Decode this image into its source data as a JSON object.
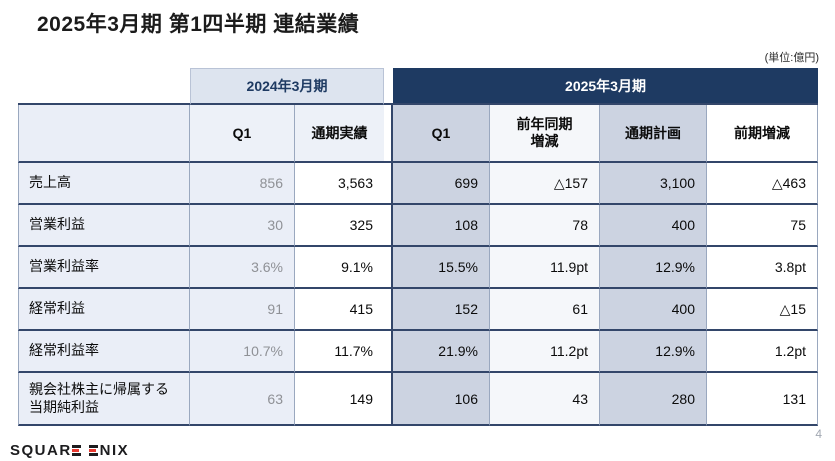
{
  "page": {
    "title": "2025年3月期 第1四半期 連結業績",
    "unit_label": "(単位:億円)",
    "page_number": "4"
  },
  "footer": {
    "logo_full": "SQUARE ENIX",
    "logo_text_1": "SQUAR",
    "logo_text_2": "NIX"
  },
  "colors": {
    "header_navy": "#1e3a62",
    "fy2024_header_bg": "#dde4ef",
    "label_column_bg": "#eaeef7",
    "shaded_column_bg": "#ccd3e1",
    "logo_red": "#e8382f",
    "border_dark": "#33466a",
    "border_light": "#9aa8bf"
  },
  "table": {
    "group_headers": {
      "fy2024": "2024年3月期",
      "fy2025": "2025年3月期"
    },
    "column_headers": {
      "q1_fy24": "Q1",
      "full_year_actual": "通期実績",
      "q1_fy25": "Q1",
      "yoy_change": "前年同期\n増減",
      "full_year_plan": "通期計画",
      "period_change": "前期増減"
    },
    "rows": [
      {
        "label": "売上高",
        "q1_fy24": "856",
        "full_year_actual": "3,563",
        "q1_fy25": "699",
        "yoy_change": "△157",
        "full_year_plan": "3,100",
        "period_change": "△463"
      },
      {
        "label": "営業利益",
        "q1_fy24": "30",
        "full_year_actual": "325",
        "q1_fy25": "108",
        "yoy_change": "78",
        "full_year_plan": "400",
        "period_change": "75"
      },
      {
        "label": "営業利益率",
        "q1_fy24": "3.6%",
        "full_year_actual": "9.1%",
        "q1_fy25": "15.5%",
        "yoy_change": "11.9pt",
        "full_year_plan": "12.9%",
        "period_change": "3.8pt"
      },
      {
        "label": "経常利益",
        "q1_fy24": "91",
        "full_year_actual": "415",
        "q1_fy25": "152",
        "yoy_change": "61",
        "full_year_plan": "400",
        "period_change": "△15"
      },
      {
        "label": "経常利益率",
        "q1_fy24": "10.7%",
        "full_year_actual": "11.7%",
        "q1_fy25": "21.9%",
        "yoy_change": "11.2pt",
        "full_year_plan": "12.9%",
        "period_change": "1.2pt"
      },
      {
        "label": "親会社株主に帰属する\n当期純利益",
        "q1_fy24": "63",
        "full_year_actual": "149",
        "q1_fy25": "106",
        "yoy_change": "43",
        "full_year_plan": "280",
        "period_change": "131"
      }
    ]
  }
}
